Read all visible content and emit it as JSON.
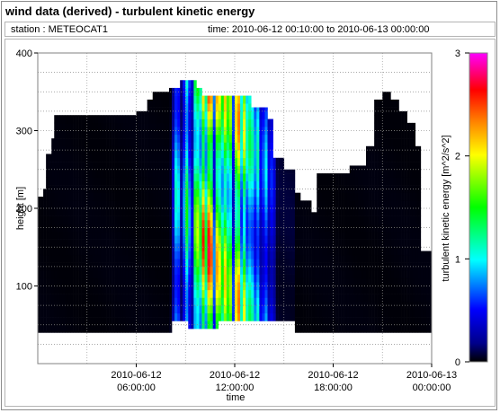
{
  "title": "wind data (derived) - turbulent kinetic energy",
  "info": {
    "station_label": "station : METEOCAT1",
    "time_label": "time: 2010-06-12 00:10:00 to 2010-06-13 00:00:00"
  },
  "chart_data": {
    "type": "heatmap",
    "xlabel": "time",
    "ylabel": "height [m]",
    "x_ticks": [
      {
        "h": 6,
        "line1": "2010-06-12",
        "line2": "06:00:00"
      },
      {
        "h": 12,
        "line1": "2010-06-12",
        "line2": "12:00:00"
      },
      {
        "h": 18,
        "line1": "2010-06-12",
        "line2": "18:00:00"
      },
      {
        "h": 24,
        "line1": "2010-06-13",
        "line2": "00:00:00"
      }
    ],
    "xlim_hours": [
      0,
      24
    ],
    "ylim": [
      0,
      400
    ],
    "y_ticks": [
      100,
      200,
      300,
      400
    ],
    "colorbar": {
      "label": "turbulent kinetic energy [m^2/s^2]",
      "range": [
        0,
        3
      ],
      "ticks": [
        0,
        1,
        2,
        3
      ]
    },
    "grid": true,
    "max_height_profile_m": [
      [
        0.0,
        215
      ],
      [
        0.3,
        225
      ],
      [
        0.5,
        270
      ],
      [
        0.8,
        290
      ],
      [
        1.0,
        320
      ],
      [
        6.0,
        325
      ],
      [
        6.7,
        340
      ],
      [
        7.0,
        350
      ],
      [
        8.0,
        355
      ],
      [
        8.6,
        365
      ],
      [
        9.6,
        355
      ],
      [
        10.0,
        345
      ],
      [
        12.5,
        345
      ],
      [
        13.0,
        330
      ],
      [
        14.0,
        315
      ],
      [
        14.3,
        265
      ],
      [
        15.0,
        250
      ],
      [
        15.7,
        220
      ],
      [
        16.0,
        210
      ],
      [
        16.6,
        195
      ],
      [
        17.0,
        245
      ],
      [
        18.0,
        245
      ],
      [
        19.0,
        255
      ],
      [
        20.0,
        280
      ],
      [
        20.5,
        340
      ],
      [
        21.0,
        350
      ],
      [
        21.5,
        340
      ],
      [
        22.0,
        325
      ],
      [
        22.5,
        310
      ],
      [
        23.0,
        280
      ],
      [
        23.3,
        145
      ],
      [
        24.0,
        145
      ]
    ],
    "min_height_profile_m": [
      [
        0.0,
        40
      ],
      [
        8.0,
        40
      ],
      [
        8.2,
        55
      ],
      [
        9.0,
        55
      ],
      [
        9.1,
        45
      ],
      [
        10.5,
        45
      ],
      [
        11.0,
        55
      ],
      [
        15.5,
        55
      ],
      [
        15.6,
        40
      ],
      [
        24.0,
        40
      ]
    ],
    "tke_peaks": [
      {
        "hour": 8.4,
        "value": 1.2
      },
      {
        "hour": 9.0,
        "value": 1.5
      },
      {
        "hour": 9.6,
        "value": 2.1
      },
      {
        "hour": 10.0,
        "value": 2.6
      },
      {
        "hour": 10.4,
        "value": 3.0
      },
      {
        "hour": 10.9,
        "value": 2.5
      },
      {
        "hour": 11.3,
        "value": 2.2
      },
      {
        "hour": 11.6,
        "value": 2.0
      },
      {
        "hour": 12.1,
        "value": 2.6
      },
      {
        "hour": 12.5,
        "value": 2.0
      },
      {
        "hour": 12.9,
        "value": 1.5
      },
      {
        "hour": 13.3,
        "value": 1.2
      },
      {
        "hour": 13.8,
        "value": 1.0
      },
      {
        "hour": 14.2,
        "value": 0.6
      }
    ],
    "background_tke": 0.02
  }
}
